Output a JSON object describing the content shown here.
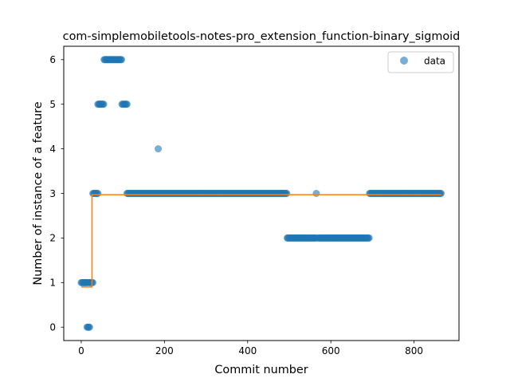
{
  "chart_data": {
    "type": "scatter",
    "title": "com-simplemobiletools-notes-pro_extension_function-binary_sigmoid",
    "xlabel": "Commit number",
    "ylabel": "Number of instance of a feature",
    "xlim": [
      -42,
      908
    ],
    "ylim": [
      -0.3,
      6.3
    ],
    "xticks": [
      0,
      200,
      400,
      600,
      800
    ],
    "yticks": [
      0,
      1,
      2,
      3,
      4,
      5,
      6
    ],
    "grid": false,
    "legend": {
      "position": "top-right",
      "entries": [
        "data"
      ]
    },
    "colors": {
      "scatter": "#1f77b4",
      "fit_line": "#ff7f0e"
    },
    "series": [
      {
        "name": "data",
        "kind": "scatter",
        "segments": [
          {
            "x_start": 0,
            "x_end": 16,
            "y": 1
          },
          {
            "x_start": 14,
            "x_end": 20,
            "y": 0
          },
          {
            "x_start": 20,
            "x_end": 28,
            "y": 1
          },
          {
            "x_start": 28,
            "x_end": 40,
            "y": 3
          },
          {
            "x_start": 40,
            "x_end": 55,
            "y": 5
          },
          {
            "x_start": 55,
            "x_end": 98,
            "y": 6
          },
          {
            "x_start": 98,
            "x_end": 110,
            "y": 5
          },
          {
            "x_start": 110,
            "x_end": 495,
            "y": 3
          },
          {
            "x_start": 495,
            "x_end": 565,
            "y": 2
          },
          {
            "x_start": 565,
            "x_end": 565,
            "y": 3
          },
          {
            "x_start": 570,
            "x_end": 693,
            "y": 2
          },
          {
            "x_start": 693,
            "x_end": 866,
            "y": 3
          }
        ],
        "outliers": [
          {
            "x": 185,
            "y": 4
          }
        ]
      },
      {
        "kind": "line",
        "points": [
          [
            0,
            0.9
          ],
          [
            26,
            0.9
          ],
          [
            26,
            2.97
          ],
          [
            866,
            2.97
          ]
        ]
      }
    ]
  }
}
